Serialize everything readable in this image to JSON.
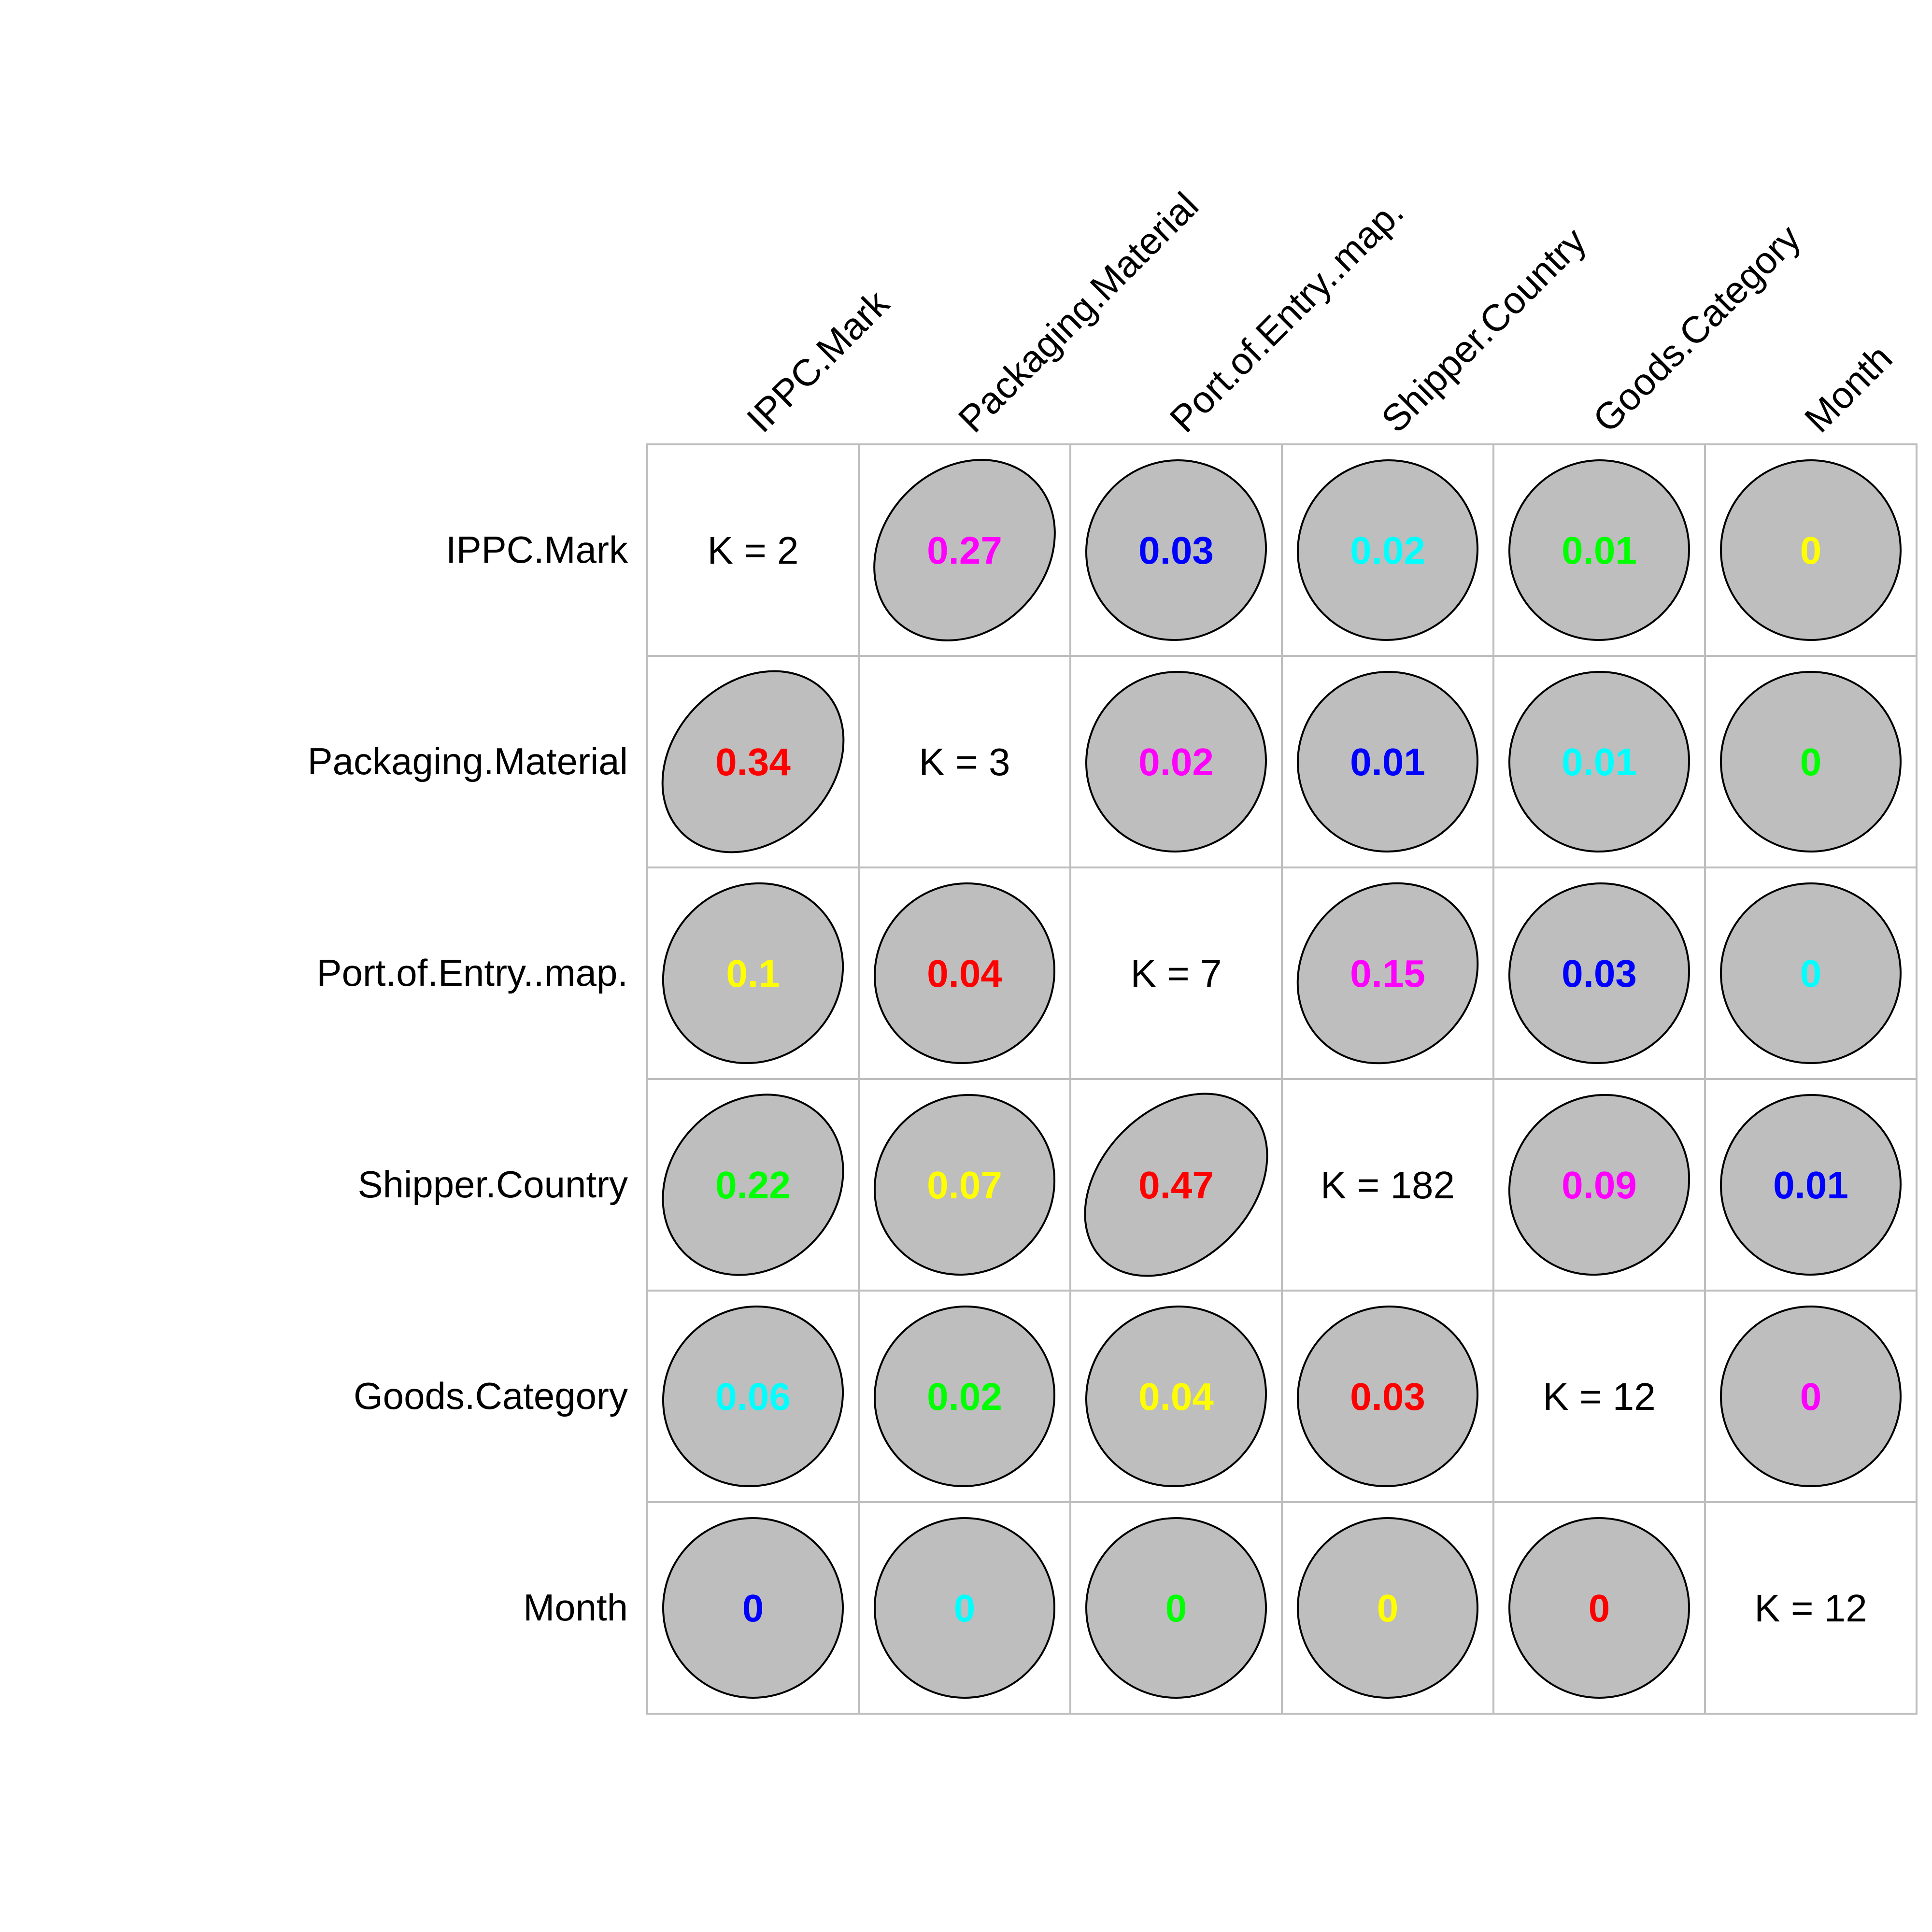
{
  "chart_data": {
    "type": "heatmap",
    "variables": [
      "IPPC.Mark",
      "Packaging.Material",
      "Port.of.Entry..map.",
      "Shipper.Country",
      "Goods.Category",
      "Month"
    ],
    "diagonal_labels": [
      "K = 2",
      "K = 3",
      "K = 7",
      "K = 182",
      "K = 12",
      "K = 12"
    ],
    "matrix": [
      [
        "",
        "0.27",
        "0.03",
        "0.02",
        "0.01",
        "0"
      ],
      [
        "0.34",
        "",
        "0.02",
        "0.01",
        "0.01",
        "0"
      ],
      [
        "0.1",
        "0.04",
        "",
        "0.15",
        "0.03",
        "0"
      ],
      [
        "0.22",
        "0.07",
        "0.47",
        "",
        "0.09",
        "0.01"
      ],
      [
        "0.06",
        "0.02",
        "0.04",
        "0.03",
        "",
        "0"
      ],
      [
        "0",
        "0",
        "0",
        "0",
        "0",
        ""
      ]
    ],
    "text_colors": [
      [
        "",
        "#FF00FF",
        "#0000FF",
        "#00FFFF",
        "#00FF00",
        "#FFFF00"
      ],
      [
        "#FF0000",
        "",
        "#FF00FF",
        "#0000FF",
        "#00FFFF",
        "#00FF00"
      ],
      [
        "#FFFF00",
        "#FF0000",
        "",
        "#FF00FF",
        "#0000FF",
        "#00FFFF"
      ],
      [
        "#00FF00",
        "#FFFF00",
        "#FF0000",
        "",
        "#FF00FF",
        "#0000FF"
      ],
      [
        "#00FFFF",
        "#00FF00",
        "#FFFF00",
        "#FF0000",
        "",
        "#FF00FF"
      ],
      [
        "#0000FF",
        "#00FFFF",
        "#00FF00",
        "#FFFF00",
        "#FF0000",
        ""
      ]
    ],
    "ellipse_fill": "#BEBEBE",
    "grid_color": "#BEBEBE"
  }
}
